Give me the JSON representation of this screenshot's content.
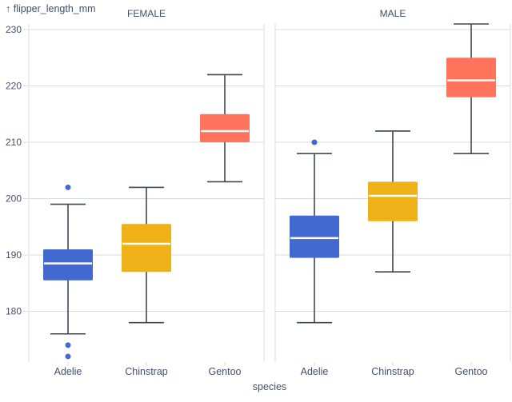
{
  "chart_data": {
    "type": "boxplot",
    "y_axis": {
      "label": "↑ flipper_length_mm",
      "ticks": [
        180,
        190,
        200,
        210,
        220,
        230
      ],
      "domain": [
        171,
        231
      ]
    },
    "x_axis": {
      "label": "species",
      "categories": [
        "Adelie",
        "Chinstrap",
        "Gentoo"
      ]
    },
    "facets": [
      {
        "label": "FEMALE",
        "boxes": [
          {
            "species": "Adelie",
            "color": "#4269d0",
            "whisker_low": 176,
            "q1": 185.5,
            "median": 188.5,
            "q3": 191,
            "whisker_high": 199,
            "outliers": [
              172,
              174,
              202
            ]
          },
          {
            "species": "Chinstrap",
            "color": "#efb118",
            "whisker_low": 178,
            "q1": 187,
            "median": 192,
            "q3": 195.5,
            "whisker_high": 202,
            "outliers": []
          },
          {
            "species": "Gentoo",
            "color": "#ff725c",
            "whisker_low": 203,
            "q1": 210,
            "median": 212,
            "q3": 215,
            "whisker_high": 222,
            "outliers": []
          }
        ]
      },
      {
        "label": "MALE",
        "boxes": [
          {
            "species": "Adelie",
            "color": "#4269d0",
            "whisker_low": 178,
            "q1": 189.5,
            "median": 193,
            "q3": 197,
            "whisker_high": 208,
            "outliers": [
              210
            ]
          },
          {
            "species": "Chinstrap",
            "color": "#efb118",
            "whisker_low": 187,
            "q1": 196,
            "median": 200.5,
            "q3": 203,
            "whisker_high": 212,
            "outliers": []
          },
          {
            "species": "Gentoo",
            "color": "#ff725c",
            "whisker_low": 208,
            "q1": 218,
            "median": 221,
            "q3": 225,
            "whisker_high": 231,
            "outliers": []
          }
        ]
      }
    ],
    "colors": {
      "Adelie": "#4269d0",
      "Chinstrap": "#efb118",
      "Gentoo": "#ff725c"
    },
    "grid_color": "#d7dbe1",
    "stroke_color": "#3d4855",
    "text_color": "#42506a"
  }
}
